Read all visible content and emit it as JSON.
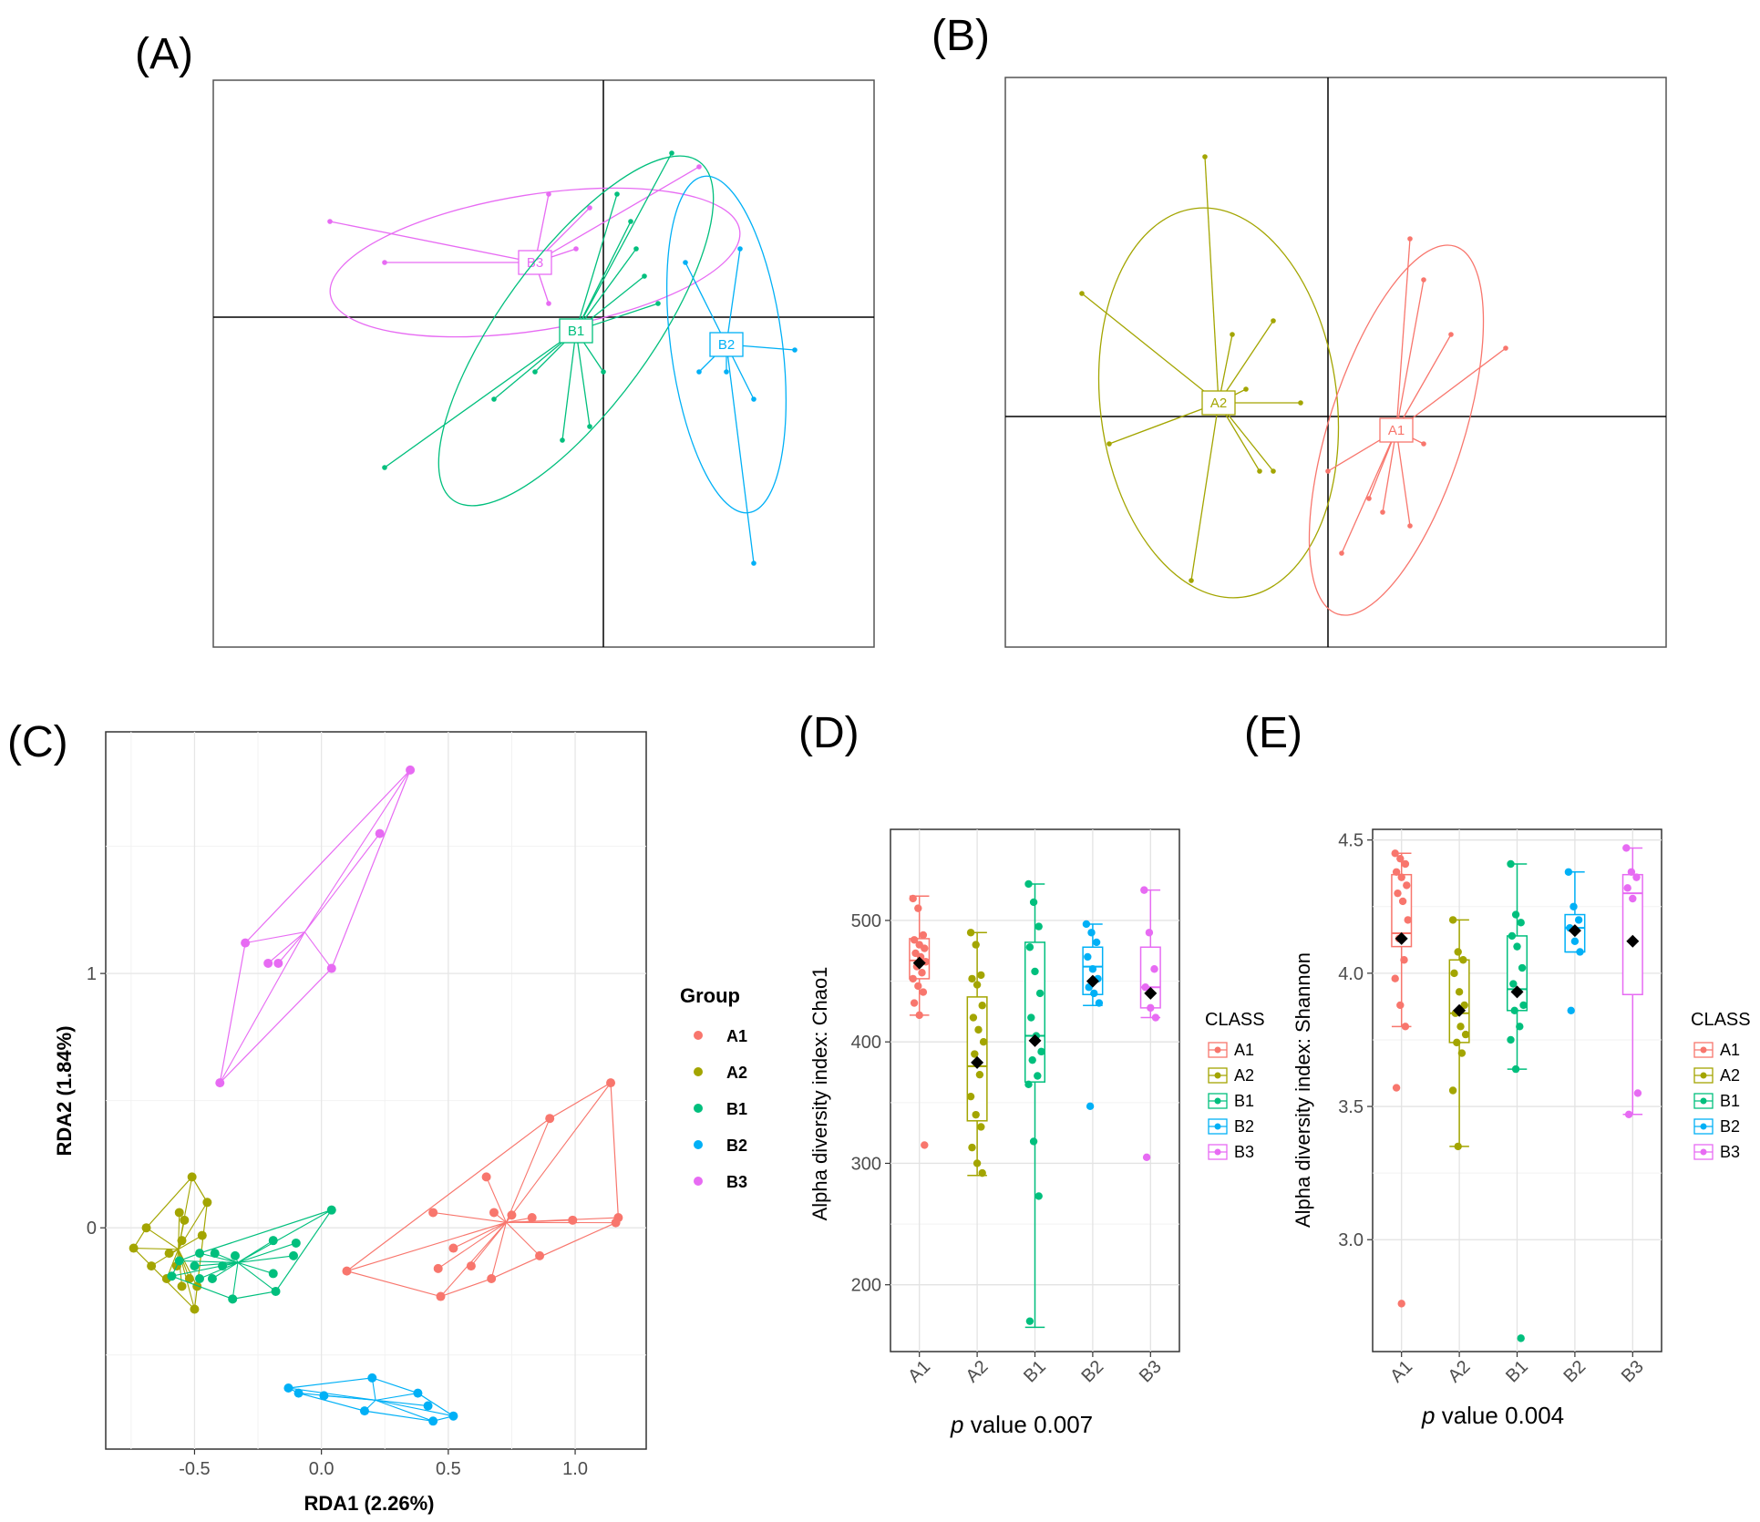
{
  "colors": {
    "A1": "#F8766D",
    "A2": "#A3A500",
    "B1": "#00BF7D",
    "B2": "#00B0F6",
    "B3": "#E76BF3"
  },
  "panel_labels": [
    "(A)",
    "(B)",
    "(C)",
    "(D)",
    "(E)"
  ],
  "chart_data": [
    {
      "type": "scatter",
      "panel": "(A)",
      "title": "",
      "groups": [
        {
          "name": "B3",
          "centroid": [
            -0.25,
            0.2
          ],
          "points": [
            [
              -1.0,
              0.35
            ],
            [
              -0.8,
              0.2
            ],
            [
              -0.2,
              0.45
            ],
            [
              -0.05,
              0.4
            ],
            [
              -0.2,
              0.05
            ],
            [
              0.35,
              0.55
            ],
            [
              -0.1,
              0.25
            ]
          ]
        },
        {
          "name": "B1",
          "centroid": [
            -0.1,
            -0.05
          ],
          "points": [
            [
              -0.8,
              -0.55
            ],
            [
              -0.4,
              -0.3
            ],
            [
              -0.25,
              -0.2
            ],
            [
              -0.15,
              -0.45
            ],
            [
              -0.05,
              -0.4
            ],
            [
              0.0,
              -0.2
            ],
            [
              0.05,
              0.45
            ],
            [
              0.1,
              0.35
            ],
            [
              0.12,
              0.25
            ],
            [
              0.15,
              0.15
            ],
            [
              0.2,
              0.05
            ],
            [
              0.25,
              0.6
            ]
          ]
        },
        {
          "name": "B2",
          "centroid": [
            0.45,
            -0.1
          ],
          "points": [
            [
              0.3,
              0.2
            ],
            [
              0.35,
              -0.2
            ],
            [
              0.45,
              -0.2
            ],
            [
              0.5,
              0.25
            ],
            [
              0.55,
              -0.3
            ],
            [
              0.7,
              -0.12
            ],
            [
              0.55,
              -0.9
            ]
          ]
        }
      ]
    },
    {
      "type": "scatter",
      "panel": "(B)",
      "title": "",
      "groups": [
        {
          "name": "A2",
          "centroid": [
            -0.4,
            0.05
          ],
          "points": [
            [
              -0.9,
              0.45
            ],
            [
              -0.8,
              -0.1
            ],
            [
              -0.45,
              0.95
            ],
            [
              -0.35,
              0.3
            ],
            [
              -0.2,
              0.35
            ],
            [
              -0.2,
              -0.2
            ],
            [
              -0.5,
              -0.6
            ],
            [
              -0.3,
              0.1
            ],
            [
              -0.1,
              0.05
            ],
            [
              -0.25,
              -0.2
            ]
          ]
        },
        {
          "name": "A1",
          "centroid": [
            0.25,
            -0.05
          ],
          "points": [
            [
              0.0,
              -0.2
            ],
            [
              0.05,
              -0.5
            ],
            [
              0.15,
              -0.3
            ],
            [
              0.3,
              0.65
            ],
            [
              0.35,
              0.5
            ],
            [
              0.45,
              0.3
            ],
            [
              0.65,
              0.25
            ],
            [
              0.35,
              -0.1
            ],
            [
              0.2,
              -0.35
            ],
            [
              0.3,
              -0.4
            ]
          ]
        }
      ]
    },
    {
      "type": "scatter",
      "panel": "(C)",
      "xlabel": "RDA1 (2.26%)",
      "ylabel": "RDA2 (1.84%)",
      "xlim": [
        -0.85,
        1.28
      ],
      "ylim": [
        -0.87,
        1.95
      ],
      "xticks": [
        -0.5,
        0.0,
        0.5,
        1.0
      ],
      "xtick_labels": [
        "-0.5",
        "0.0",
        "0.5",
        "1.0"
      ],
      "yticks": [
        0,
        1
      ],
      "ytick_labels": [
        "0",
        "1"
      ],
      "legend": {
        "title": "Group",
        "entries": [
          "A1",
          "A2",
          "B1",
          "B2",
          "B3"
        ],
        "position": "right"
      },
      "series": [
        {
          "name": "B3",
          "points": [
            [
              0.35,
              1.8
            ],
            [
              0.23,
              1.55
            ],
            [
              -0.3,
              1.12
            ],
            [
              -0.21,
              1.04
            ],
            [
              -0.17,
              1.04
            ],
            [
              0.04,
              1.02
            ],
            [
              -0.4,
              0.57
            ]
          ]
        },
        {
          "name": "A1",
          "points": [
            [
              1.14,
              0.57
            ],
            [
              0.9,
              0.43
            ],
            [
              0.65,
              0.2
            ],
            [
              0.44,
              0.06
            ],
            [
              0.68,
              0.06
            ],
            [
              0.75,
              0.05
            ],
            [
              0.83,
              0.04
            ],
            [
              0.99,
              0.03
            ],
            [
              1.17,
              0.04
            ],
            [
              1.16,
              0.02
            ],
            [
              0.52,
              -0.08
            ],
            [
              0.86,
              -0.11
            ],
            [
              0.59,
              -0.15
            ],
            [
              0.46,
              -0.16
            ],
            [
              0.67,
              -0.2
            ],
            [
              0.1,
              -0.17
            ],
            [
              0.47,
              -0.27
            ]
          ]
        },
        {
          "name": "A2",
          "points": [
            [
              -0.51,
              0.2
            ],
            [
              -0.45,
              0.1
            ],
            [
              -0.56,
              0.06
            ],
            [
              -0.69,
              0.0
            ],
            [
              -0.54,
              0.03
            ],
            [
              -0.55,
              -0.05
            ],
            [
              -0.47,
              -0.03
            ],
            [
              -0.6,
              -0.1
            ],
            [
              -0.57,
              -0.15
            ],
            [
              -0.74,
              -0.08
            ],
            [
              -0.67,
              -0.15
            ],
            [
              -0.61,
              -0.2
            ],
            [
              -0.55,
              -0.23
            ],
            [
              -0.49,
              -0.23
            ],
            [
              -0.52,
              -0.2
            ],
            [
              -0.5,
              -0.32
            ]
          ]
        },
        {
          "name": "B1",
          "points": [
            [
              0.04,
              0.07
            ],
            [
              -0.1,
              -0.06
            ],
            [
              -0.11,
              -0.11
            ],
            [
              -0.19,
              -0.05
            ],
            [
              -0.34,
              -0.11
            ],
            [
              -0.42,
              -0.1
            ],
            [
              -0.48,
              -0.1
            ],
            [
              -0.5,
              -0.15
            ],
            [
              -0.56,
              -0.13
            ],
            [
              -0.59,
              -0.19
            ],
            [
              -0.48,
              -0.2
            ],
            [
              -0.39,
              -0.15
            ],
            [
              -0.19,
              -0.18
            ],
            [
              -0.18,
              -0.25
            ],
            [
              -0.35,
              -0.28
            ],
            [
              -0.43,
              -0.2
            ]
          ]
        },
        {
          "name": "B2",
          "points": [
            [
              -0.13,
              -0.63
            ],
            [
              -0.09,
              -0.65
            ],
            [
              0.01,
              -0.66
            ],
            [
              0.2,
              -0.59
            ],
            [
              0.17,
              -0.72
            ],
            [
              0.38,
              -0.65
            ],
            [
              0.42,
              -0.7
            ],
            [
              0.52,
              -0.74
            ],
            [
              0.44,
              -0.76
            ]
          ]
        }
      ]
    },
    {
      "type": "box",
      "panel": "(D)",
      "ylabel": "Alpha diversity index: Chao1",
      "xlabel": "p value 0.007",
      "xlabel_italic": "p",
      "xlabel_rest": " value 0.007",
      "categories": [
        "A1",
        "A2",
        "B1",
        "B2",
        "B3"
      ],
      "ylim": [
        145,
        575
      ],
      "yticks": [
        200,
        300,
        400,
        500
      ],
      "ytick_labels": [
        "200",
        "300",
        "400",
        "500"
      ],
      "legend": {
        "title": "CLASS",
        "entries": [
          "A1",
          "A2",
          "B1",
          "B2",
          "B3"
        ],
        "position": "right"
      },
      "boxes": [
        {
          "name": "A1",
          "min": 422,
          "q1": 452,
          "median": 467,
          "q3": 485,
          "max": 520,
          "mean": 465,
          "outliers": [
            315
          ],
          "points": [
            518,
            510,
            488,
            484,
            480,
            477,
            473,
            470,
            466,
            462,
            457,
            452,
            446,
            441,
            432,
            422,
            315
          ]
        },
        {
          "name": "A2",
          "min": 290,
          "q1": 335,
          "median": 380,
          "q3": 437,
          "max": 490,
          "mean": 383,
          "outliers": [],
          "points": [
            490,
            480,
            455,
            452,
            447,
            430,
            420,
            410,
            400,
            390,
            373,
            355,
            340,
            330,
            313,
            300,
            292
          ]
        },
        {
          "name": "B1",
          "min": 165,
          "q1": 367,
          "median": 405,
          "q3": 482,
          "max": 530,
          "mean": 401,
          "outliers": [],
          "points": [
            530,
            515,
            495,
            478,
            458,
            440,
            420,
            405,
            392,
            385,
            372,
            365,
            318,
            273,
            170
          ]
        },
        {
          "name": "B2",
          "min": 430,
          "q1": 439,
          "median": 462,
          "q3": 478,
          "max": 497,
          "mean": 450,
          "outliers": [
            347
          ],
          "points": [
            497,
            490,
            482,
            470,
            460,
            452,
            445,
            440,
            432,
            347
          ]
        },
        {
          "name": "B3",
          "min": 420,
          "q1": 428,
          "median": 445,
          "q3": 478,
          "max": 525,
          "mean": 440,
          "outliers": [
            305
          ],
          "points": [
            525,
            490,
            460,
            445,
            428,
            420,
            305
          ]
        }
      ]
    },
    {
      "type": "box",
      "panel": "(E)",
      "ylabel": "Alpha diversity index: Shannon",
      "xlabel": "p value 0.004",
      "xlabel_italic": "p",
      "xlabel_rest": " value 0.004",
      "categories": [
        "A1",
        "A2",
        "B1",
        "B2",
        "B3"
      ],
      "ylim": [
        2.58,
        4.54
      ],
      "yticks": [
        3.0,
        3.5,
        4.0,
        4.5
      ],
      "ytick_labels": [
        "3.0",
        "3.5",
        "4.0",
        "4.5"
      ],
      "legend": {
        "title": "CLASS",
        "entries": [
          "A1",
          "A2",
          "B1",
          "B2",
          "B3"
        ],
        "position": "right"
      },
      "boxes": [
        {
          "name": "A1",
          "min": 3.8,
          "q1": 4.1,
          "median": 4.15,
          "q3": 4.37,
          "max": 4.45,
          "mean": 4.13,
          "outliers": [
            3.57,
            2.76
          ],
          "points": [
            4.45,
            4.43,
            4.41,
            4.38,
            4.36,
            4.33,
            4.3,
            4.27,
            4.2,
            4.13,
            4.05,
            3.98,
            3.88,
            3.8,
            3.57,
            2.76
          ]
        },
        {
          "name": "A2",
          "min": 3.35,
          "q1": 3.74,
          "median": 3.85,
          "q3": 4.05,
          "max": 4.2,
          "mean": 3.86,
          "outliers": [],
          "points": [
            4.2,
            4.08,
            4.05,
            4.0,
            3.93,
            3.88,
            3.85,
            3.8,
            3.77,
            3.74,
            3.7,
            3.56,
            3.35
          ]
        },
        {
          "name": "B1",
          "min": 3.64,
          "q1": 3.86,
          "median": 3.94,
          "q3": 4.14,
          "max": 4.41,
          "mean": 3.93,
          "outliers": [
            2.63
          ],
          "points": [
            4.41,
            4.22,
            4.19,
            4.14,
            4.1,
            4.02,
            3.96,
            3.93,
            3.88,
            3.86,
            3.8,
            3.75,
            3.64,
            2.63
          ]
        },
        {
          "name": "B2",
          "min": 4.08,
          "q1": 4.08,
          "median": 4.17,
          "q3": 4.22,
          "max": 4.38,
          "mean": 4.16,
          "outliers": [
            3.86
          ],
          "points": [
            4.38,
            4.25,
            4.2,
            4.17,
            4.12,
            4.08,
            3.86
          ]
        },
        {
          "name": "B3",
          "min": 3.47,
          "q1": 3.92,
          "median": 4.3,
          "q3": 4.37,
          "max": 4.47,
          "mean": 4.12,
          "outliers": [],
          "points": [
            4.47,
            4.38,
            4.36,
            4.32,
            4.28,
            3.55,
            3.47
          ]
        }
      ]
    }
  ]
}
